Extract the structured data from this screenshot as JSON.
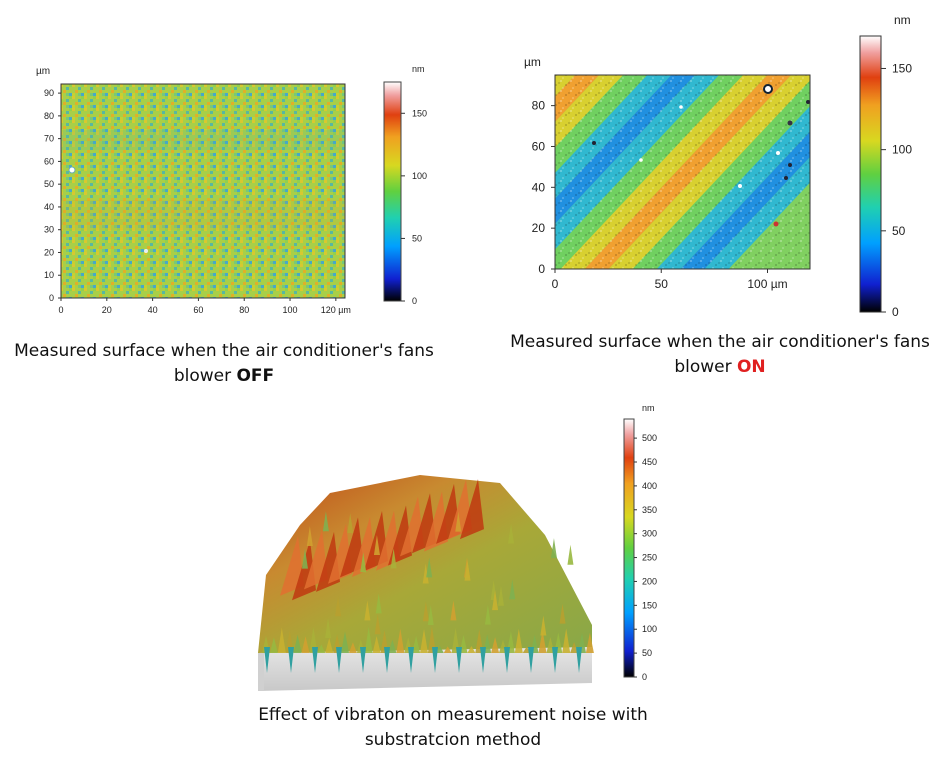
{
  "chart_data": [
    {
      "type": "heatmap",
      "view": "2D surface map",
      "x_unit_label": "µm",
      "y_unit_label": "µm",
      "xlim": [
        0,
        124
      ],
      "ylim": [
        0,
        94
      ],
      "x_ticks": [
        "0",
        "20",
        "40",
        "60",
        "80",
        "100",
        "120 µm"
      ],
      "y_ticks": [
        "0",
        "10",
        "20",
        "30",
        "40",
        "50",
        "60",
        "70",
        "80",
        "90"
      ],
      "colorbar": {
        "unit": "nm",
        "range": [
          0,
          175
        ],
        "ticks": [
          "0",
          "50",
          "100",
          "150"
        ]
      },
      "pattern": "near-uniform noise ~90-110 nm, faint diagonal banding",
      "caption": {
        "text": "Measured surface when the air conditioner's fans blower ",
        "state": "OFF"
      }
    },
    {
      "type": "heatmap",
      "view": "2D surface map",
      "y_unit_label": "µm",
      "xlim": [
        0,
        120
      ],
      "ylim": [
        0,
        95
      ],
      "x_ticks": [
        "0",
        "50",
        "100 µm"
      ],
      "y_ticks": [
        "0",
        "20",
        "40",
        "60",
        "80"
      ],
      "colorbar": {
        "unit": "nm",
        "range": [
          0,
          170
        ],
        "ticks": [
          "0",
          "50",
          "100",
          "150"
        ]
      },
      "pattern": "strong diagonal stripes alternating ~40 nm (blue) and ~140 nm (orange)",
      "caption": {
        "text": "Measured surface when the air conditioner's fans blower ",
        "state": "ON"
      }
    },
    {
      "type": "heatmap",
      "view": "3D surface render",
      "colorbar": {
        "unit": "nm",
        "range": [
          0,
          540
        ],
        "ticks": [
          "0",
          "50",
          "100",
          "150",
          "200",
          "250",
          "300",
          "350",
          "400",
          "450",
          "500"
        ]
      },
      "pattern": "rough yellow-green surface with red ridges along back edge",
      "caption": {
        "text": "Effect of vibraton on measurement noise with substratcion method"
      }
    }
  ],
  "colors": {
    "scale": [
      "#000000",
      "#1020d0",
      "#00a0ff",
      "#20d0b0",
      "#60d040",
      "#d8d820",
      "#f0a020",
      "#e04010",
      "#f0a0a0",
      "#ffffff"
    ],
    "on_text": "#e02020"
  }
}
